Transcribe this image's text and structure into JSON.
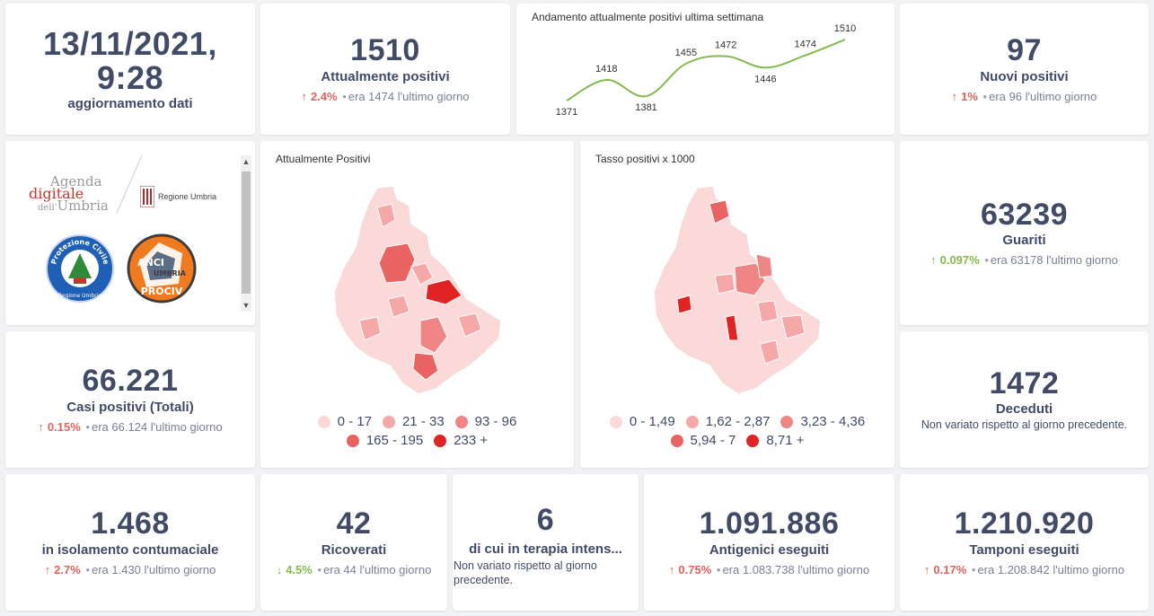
{
  "update": {
    "datetime": "13/11/2021, 9:28",
    "label": "aggiornamento dati"
  },
  "attualmente_positivi": {
    "value": "1510",
    "label": "Attualmente positivi",
    "pct": "2.4%",
    "prev": "era 1474",
    "suffix": "l'ultimo giorno"
  },
  "weekly_chart": {
    "title": "Andamento attualmente positivi ultima settimana",
    "chart_data": {
      "type": "line",
      "values": [
        1371,
        1418,
        1381,
        1455,
        1472,
        1446,
        1474,
        1510
      ],
      "labels": [
        "1371",
        "1418",
        "1381",
        "1455",
        "1472",
        "1446",
        "1474",
        "1510"
      ],
      "line_color": "#86b94f"
    }
  },
  "nuovi_positivi": {
    "value": "97",
    "label": "Nuovi positivi",
    "pct": "1%",
    "prev": "era 96",
    "suffix": "l'ultimo giorno"
  },
  "logos": {
    "agenda_line1": "Agenda",
    "agenda_line2": "digitale",
    "agenda_line3a": "dell'",
    "agenda_line3b": "Umbria",
    "regione": "Regione Umbria",
    "protezione": "Protezione Civile",
    "protezione_sub": "Regione Umbria",
    "anci": "ANCI",
    "umbria": "UMBRIA",
    "prociv": "PROCIV"
  },
  "map_positivi": {
    "title": "Attualmente Positivi",
    "legend": [
      {
        "label": "0 - 17",
        "color": "#fbd9d9"
      },
      {
        "label": "21 - 33",
        "color": "#f6a7a7"
      },
      {
        "label": "93 - 96",
        "color": "#f08585"
      },
      {
        "label": "165 - 195",
        "color": "#ea6363"
      },
      {
        "label": "233 +",
        "color": "#e02424"
      }
    ]
  },
  "map_tasso": {
    "title": "Tasso positivi x 1000",
    "legend": [
      {
        "label": "0 - 1,49",
        "color": "#fbd9d9"
      },
      {
        "label": "1,62 - 2,87",
        "color": "#f6a7a7"
      },
      {
        "label": "3,23 - 4,36",
        "color": "#f08585"
      },
      {
        "label": "5,94 - 7",
        "color": "#ea6363"
      },
      {
        "label": "8,71 +",
        "color": "#e02424"
      }
    ]
  },
  "guariti": {
    "value": "63239",
    "label": "Guariti",
    "pct": "0.097%",
    "prev": "era 63178",
    "suffix": "l'ultimo giorno"
  },
  "casi_totali": {
    "value": "66.221",
    "label": "Casi positivi (Totali)",
    "pct": "0.15%",
    "prev": "era 66.124",
    "suffix": "l'ultimo giorno"
  },
  "deceduti": {
    "value": "1472",
    "label": "Deceduti",
    "note": "Non variato rispetto al giorno precedente."
  },
  "isolamento": {
    "value": "1.468",
    "label": "in isolamento contumaciale",
    "pct": "2.7%",
    "prev": "era 1.430",
    "suffix": "l'ultimo giorno"
  },
  "ricoverati": {
    "value": "42",
    "label": "Ricoverati",
    "pct": "4.5%",
    "prev": "era 44",
    "suffix": "l'ultimo giorno"
  },
  "terapia": {
    "value": "6",
    "label": "di cui in terapia intens...",
    "note": "Non variato rispetto al giorno precedente."
  },
  "antigenici": {
    "value": "1.091.886",
    "label": "Antigenici eseguiti",
    "pct": "0.75%",
    "prev": "era 1.083.738",
    "suffix": "l'ultimo giorno"
  },
  "tamponi": {
    "value": "1.210.920",
    "label": "Tamponi eseguiti",
    "pct": "0.17%",
    "prev": "era 1.208.842",
    "suffix": "l'ultimo giorno"
  },
  "icons": {
    "arrow_up": "↑",
    "arrow_down": "↓",
    "dot": "•",
    "scroll_up": "▲",
    "scroll_down": "▼"
  }
}
